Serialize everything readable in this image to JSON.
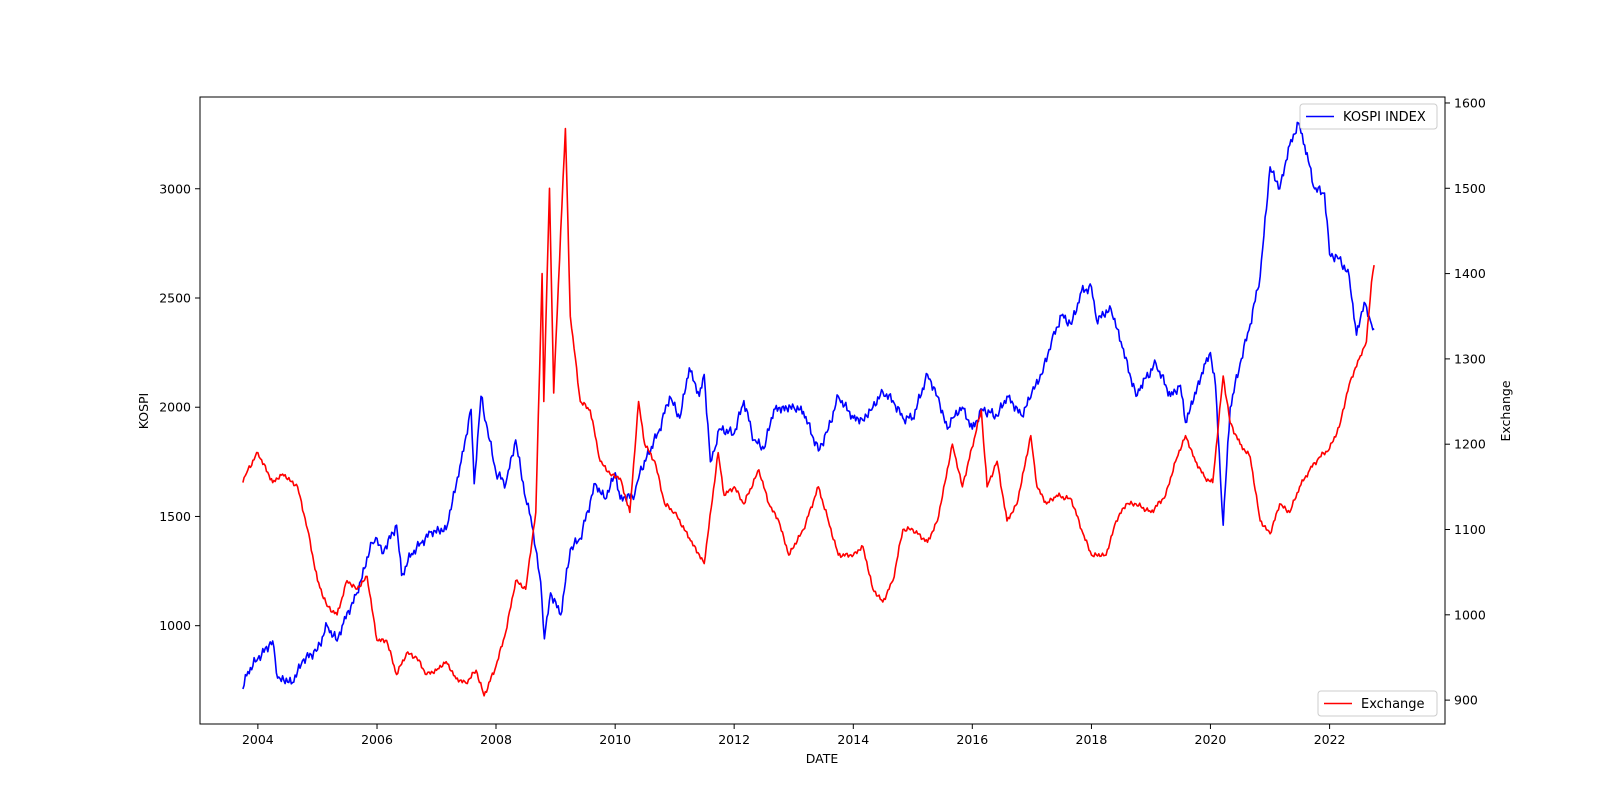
{
  "chart_data": {
    "type": "line",
    "xlabel": "DATE",
    "ylabel_left": "KOSPI",
    "ylabel_right": "Exchange",
    "x_ticks": [
      "2004",
      "2006",
      "2008",
      "2010",
      "2012",
      "2014",
      "2016",
      "2018",
      "2020",
      "2022"
    ],
    "y_left_ticks": [
      "1000",
      "1500",
      "2000",
      "2500",
      "3000"
    ],
    "y_right_ticks": [
      "900",
      "1000",
      "1100",
      "1200",
      "1300",
      "1400",
      "1500",
      "1600"
    ],
    "xlim": [
      "2003-01-11",
      "2023-12-10"
    ],
    "ylim_left": [
      550,
      3420
    ],
    "ylim_right": [
      872,
      1607
    ],
    "legend_left": {
      "position": "upper right",
      "label": "KOSPI INDEX",
      "color": "#0000ff"
    },
    "legend_right": {
      "position": "lower right",
      "label": "Exchange",
      "color": "#ff0000"
    },
    "series": [
      {
        "name": "KOSPI INDEX",
        "axis": "left",
        "color": "#0000ff",
        "points": [
          [
            "2003-10-01",
            710
          ],
          [
            "2003-11-01",
            790
          ],
          [
            "2004-01-01",
            850
          ],
          [
            "2004-04-01",
            930
          ],
          [
            "2004-05-01",
            760
          ],
          [
            "2004-08-01",
            740
          ],
          [
            "2004-10-01",
            840
          ],
          [
            "2005-01-01",
            890
          ],
          [
            "2005-03-01",
            1000
          ],
          [
            "2005-05-01",
            930
          ],
          [
            "2005-06-01",
            1000
          ],
          [
            "2005-09-01",
            1150
          ],
          [
            "2005-12-01",
            1380
          ],
          [
            "2006-01-01",
            1400
          ],
          [
            "2006-02-01",
            1330
          ],
          [
            "2006-05-01",
            1460
          ],
          [
            "2006-06-01",
            1230
          ],
          [
            "2006-08-01",
            1330
          ],
          [
            "2006-10-01",
            1380
          ],
          [
            "2006-12-01",
            1430
          ],
          [
            "2007-03-01",
            1440
          ],
          [
            "2007-06-01",
            1750
          ],
          [
            "2007-08-01",
            1990
          ],
          [
            "2007-08-20",
            1650
          ],
          [
            "2007-10-01",
            2050
          ],
          [
            "2007-11-01",
            1930
          ],
          [
            "2008-01-01",
            1700
          ],
          [
            "2008-03-01",
            1650
          ],
          [
            "2008-05-01",
            1850
          ],
          [
            "2008-07-01",
            1580
          ],
          [
            "2008-08-01",
            1500
          ],
          [
            "2008-10-01",
            1200
          ],
          [
            "2008-10-24",
            940
          ],
          [
            "2008-12-01",
            1150
          ],
          [
            "2009-02-01",
            1050
          ],
          [
            "2009-04-01",
            1350
          ],
          [
            "2009-06-01",
            1400
          ],
          [
            "2009-09-01",
            1650
          ],
          [
            "2009-11-01",
            1580
          ],
          [
            "2010-01-01",
            1700
          ],
          [
            "2010-02-01",
            1580
          ],
          [
            "2010-05-01",
            1600
          ],
          [
            "2010-06-01",
            1700
          ],
          [
            "2010-10-01",
            1900
          ],
          [
            "2010-12-01",
            2050
          ],
          [
            "2011-02-01",
            1950
          ],
          [
            "2011-04-01",
            2180
          ],
          [
            "2011-06-01",
            2050
          ],
          [
            "2011-07-01",
            2150
          ],
          [
            "2011-08-08",
            1750
          ],
          [
            "2011-09-01",
            1800
          ],
          [
            "2011-10-01",
            1900
          ],
          [
            "2012-01-01",
            1880
          ],
          [
            "2012-03-01",
            2030
          ],
          [
            "2012-05-01",
            1850
          ],
          [
            "2012-07-01",
            1810
          ],
          [
            "2012-09-01",
            1990
          ],
          [
            "2013-01-01",
            2000
          ],
          [
            "2013-03-01",
            1980
          ],
          [
            "2013-06-01",
            1800
          ],
          [
            "2013-08-01",
            1900
          ],
          [
            "2013-10-01",
            2050
          ],
          [
            "2014-01-01",
            1950
          ],
          [
            "2014-03-01",
            1940
          ],
          [
            "2014-05-01",
            2000
          ],
          [
            "2014-07-01",
            2070
          ],
          [
            "2014-09-01",
            2030
          ],
          [
            "2014-11-01",
            1950
          ],
          [
            "2015-01-01",
            1950
          ],
          [
            "2015-04-01",
            2150
          ],
          [
            "2015-06-01",
            2050
          ],
          [
            "2015-08-01",
            1900
          ],
          [
            "2015-09-01",
            1950
          ],
          [
            "2015-11-01",
            2000
          ],
          [
            "2016-01-01",
            1900
          ],
          [
            "2016-03-01",
            1990
          ],
          [
            "2016-06-01",
            1960
          ],
          [
            "2016-08-01",
            2050
          ],
          [
            "2016-11-01",
            1960
          ],
          [
            "2017-01-01",
            2070
          ],
          [
            "2017-03-01",
            2150
          ],
          [
            "2017-05-01",
            2300
          ],
          [
            "2017-07-01",
            2420
          ],
          [
            "2017-09-01",
            2380
          ],
          [
            "2017-11-01",
            2530
          ],
          [
            "2018-01-01",
            2550
          ],
          [
            "2018-02-01",
            2400
          ],
          [
            "2018-05-01",
            2450
          ],
          [
            "2018-07-01",
            2300
          ],
          [
            "2018-10-01",
            2050
          ],
          [
            "2018-11-01",
            2100
          ],
          [
            "2019-02-01",
            2200
          ],
          [
            "2019-05-01",
            2050
          ],
          [
            "2019-07-01",
            2100
          ],
          [
            "2019-08-01",
            1930
          ],
          [
            "2019-12-01",
            2200
          ],
          [
            "2020-01-01",
            2250
          ],
          [
            "2020-02-01",
            2100
          ],
          [
            "2020-03-19",
            1460
          ],
          [
            "2020-05-01",
            2000
          ],
          [
            "2020-07-01",
            2200
          ],
          [
            "2020-09-01",
            2380
          ],
          [
            "2020-11-01",
            2600
          ],
          [
            "2021-01-01",
            3100
          ],
          [
            "2021-03-01",
            3000
          ],
          [
            "2021-05-01",
            3200
          ],
          [
            "2021-06-25",
            3300
          ],
          [
            "2021-08-01",
            3200
          ],
          [
            "2021-10-01",
            3000
          ],
          [
            "2021-12-01",
            2980
          ],
          [
            "2022-01-01",
            2700
          ],
          [
            "2022-03-01",
            2680
          ],
          [
            "2022-05-01",
            2600
          ],
          [
            "2022-06-15",
            2330
          ],
          [
            "2022-08-01",
            2480
          ],
          [
            "2022-09-15",
            2380
          ],
          [
            "2022-10-01",
            2360
          ]
        ]
      },
      {
        "name": "Exchange",
        "axis": "right",
        "color": "#ff0000",
        "points": [
          [
            "2003-10-01",
            1155
          ],
          [
            "2003-11-01",
            1170
          ],
          [
            "2004-01-01",
            1190
          ],
          [
            "2004-04-01",
            1155
          ],
          [
            "2004-06-01",
            1165
          ],
          [
            "2004-09-01",
            1150
          ],
          [
            "2004-11-01",
            1100
          ],
          [
            "2005-01-01",
            1040
          ],
          [
            "2005-03-01",
            1010
          ],
          [
            "2005-05-01",
            1000
          ],
          [
            "2005-07-01",
            1040
          ],
          [
            "2005-09-01",
            1030
          ],
          [
            "2005-11-01",
            1045
          ],
          [
            "2006-01-01",
            970
          ],
          [
            "2006-03-01",
            970
          ],
          [
            "2006-05-01",
            930
          ],
          [
            "2006-07-01",
            955
          ],
          [
            "2006-09-01",
            950
          ],
          [
            "2006-11-01",
            930
          ],
          [
            "2007-01-01",
            935
          ],
          [
            "2007-03-01",
            945
          ],
          [
            "2007-05-01",
            925
          ],
          [
            "2007-07-01",
            920
          ],
          [
            "2007-09-01",
            935
          ],
          [
            "2007-10-20",
            905
          ],
          [
            "2008-01-01",
            940
          ],
          [
            "2008-03-01",
            980
          ],
          [
            "2008-05-01",
            1040
          ],
          [
            "2008-07-01",
            1030
          ],
          [
            "2008-09-01",
            1120
          ],
          [
            "2008-10-10",
            1400
          ],
          [
            "2008-10-20",
            1250
          ],
          [
            "2008-11-24",
            1500
          ],
          [
            "2008-12-20",
            1260
          ],
          [
            "2009-02-01",
            1450
          ],
          [
            "2009-03-02",
            1570
          ],
          [
            "2009-04-01",
            1350
          ],
          [
            "2009-06-01",
            1250
          ],
          [
            "2009-08-01",
            1240
          ],
          [
            "2009-10-01",
            1180
          ],
          [
            "2009-12-01",
            1165
          ],
          [
            "2010-02-01",
            1160
          ],
          [
            "2010-04-01",
            1120
          ],
          [
            "2010-05-25",
            1250
          ],
          [
            "2010-07-01",
            1200
          ],
          [
            "2010-09-01",
            1180
          ],
          [
            "2010-11-01",
            1130
          ],
          [
            "2011-01-01",
            1120
          ],
          [
            "2011-04-01",
            1090
          ],
          [
            "2011-07-01",
            1060
          ],
          [
            "2011-09-25",
            1190
          ],
          [
            "2011-11-01",
            1140
          ],
          [
            "2012-01-01",
            1150
          ],
          [
            "2012-03-01",
            1130
          ],
          [
            "2012-06-01",
            1170
          ],
          [
            "2012-08-01",
            1130
          ],
          [
            "2012-10-01",
            1110
          ],
          [
            "2012-12-01",
            1070
          ],
          [
            "2013-03-01",
            1100
          ],
          [
            "2013-06-01",
            1150
          ],
          [
            "2013-08-01",
            1110
          ],
          [
            "2013-10-01",
            1070
          ],
          [
            "2014-01-01",
            1070
          ],
          [
            "2014-03-01",
            1080
          ],
          [
            "2014-05-01",
            1030
          ],
          [
            "2014-07-01",
            1015
          ],
          [
            "2014-09-01",
            1040
          ],
          [
            "2014-11-01",
            1100
          ],
          [
            "2015-01-01",
            1100
          ],
          [
            "2015-04-01",
            1085
          ],
          [
            "2015-06-01",
            1110
          ],
          [
            "2015-09-01",
            1200
          ],
          [
            "2015-11-01",
            1150
          ],
          [
            "2016-02-25",
            1240
          ],
          [
            "2016-04-01",
            1150
          ],
          [
            "2016-06-01",
            1180
          ],
          [
            "2016-08-01",
            1110
          ],
          [
            "2016-10-01",
            1130
          ],
          [
            "2016-12-25",
            1210
          ],
          [
            "2017-02-01",
            1150
          ],
          [
            "2017-04-01",
            1130
          ],
          [
            "2017-06-01",
            1140
          ],
          [
            "2017-09-01",
            1135
          ],
          [
            "2017-11-01",
            1100
          ],
          [
            "2018-01-01",
            1070
          ],
          [
            "2018-04-01",
            1070
          ],
          [
            "2018-06-01",
            1110
          ],
          [
            "2018-08-01",
            1130
          ],
          [
            "2018-10-01",
            1130
          ],
          [
            "2019-01-01",
            1120
          ],
          [
            "2019-04-01",
            1140
          ],
          [
            "2019-06-01",
            1180
          ],
          [
            "2019-08-01",
            1210
          ],
          [
            "2019-10-01",
            1180
          ],
          [
            "2019-12-01",
            1160
          ],
          [
            "2020-01-15",
            1155
          ],
          [
            "2020-03-19",
            1280
          ],
          [
            "2020-05-01",
            1225
          ],
          [
            "2020-07-01",
            1200
          ],
          [
            "2020-09-01",
            1185
          ],
          [
            "2020-11-01",
            1110
          ],
          [
            "2021-01-01",
            1095
          ],
          [
            "2021-03-01",
            1130
          ],
          [
            "2021-05-01",
            1120
          ],
          [
            "2021-07-01",
            1150
          ],
          [
            "2021-09-01",
            1170
          ],
          [
            "2021-11-01",
            1185
          ],
          [
            "2022-01-01",
            1195
          ],
          [
            "2022-03-01",
            1220
          ],
          [
            "2022-05-01",
            1270
          ],
          [
            "2022-07-01",
            1300
          ],
          [
            "2022-08-15",
            1320
          ],
          [
            "2022-09-15",
            1390
          ],
          [
            "2022-10-01",
            1410
          ]
        ]
      }
    ]
  }
}
